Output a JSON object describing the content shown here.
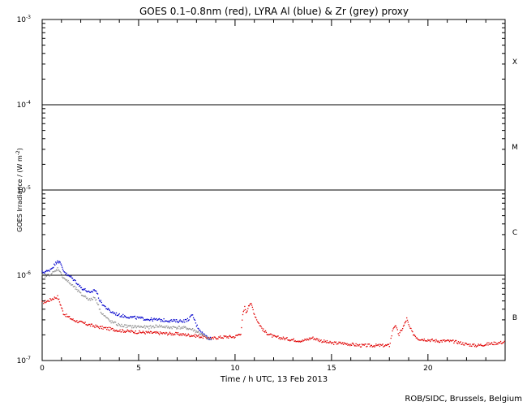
{
  "chart_data": {
    "type": "scatter",
    "title": "GOES 0.1–0.8nm (red), LYRA Al (blue) & Zr (grey) proxy",
    "xlabel": "Time / h UTC, 13 Feb 2013",
    "ylabel": "GOES Irradiance / (W m",
    "ylabel_sup": "-2",
    "ylabel_end": ")",
    "xlim": [
      0,
      24
    ],
    "ylim": [
      1e-07,
      0.001
    ],
    "yscale": "log",
    "x_ticks": [
      {
        "value": 0,
        "label": "0"
      },
      {
        "value": 5,
        "label": "5"
      },
      {
        "value": 10,
        "label": "10"
      },
      {
        "value": 15,
        "label": "15"
      },
      {
        "value": 20,
        "label": "20"
      }
    ],
    "y_ticks": [
      {
        "value": 1e-07,
        "base": "10",
        "exp": "-7"
      },
      {
        "value": 1e-06,
        "base": "10",
        "exp": "-6"
      },
      {
        "value": 1e-05,
        "base": "10",
        "exp": "-5"
      },
      {
        "value": 0.0001,
        "base": "10",
        "exp": "-4"
      },
      {
        "value": 0.001,
        "base": "10",
        "exp": "-3"
      }
    ],
    "class_thresholds": [
      1e-06,
      1e-05,
      0.0001
    ],
    "class_labels": [
      {
        "label": "B",
        "value": 3.2e-07
      },
      {
        "label": "C",
        "value": 3.2e-06
      },
      {
        "label": "M",
        "value": 3.2e-05
      },
      {
        "label": "X",
        "value": 0.00032
      }
    ],
    "series": [
      {
        "color": "#e00000",
        "x": [
          0,
          0.3,
          0.6,
          0.8,
          0.9,
          1.0,
          1.1,
          1.3,
          1.6,
          2.0,
          2.5,
          3.0,
          3.5,
          4.0,
          5.0,
          6.0,
          7.0,
          7.5,
          8.0,
          8.3,
          8.6,
          8.8,
          9.0,
          9.5,
          10.0,
          10.3,
          10.4,
          10.5,
          10.6,
          10.7,
          10.8,
          10.9,
          11.0,
          11.2,
          11.5,
          12.0,
          13.0,
          13.5,
          14.0,
          14.5,
          15.0,
          15.5,
          16.0,
          16.5,
          17.0,
          17.5,
          18.0,
          18.2,
          18.3,
          18.5,
          18.8,
          18.9,
          19.0,
          19.2,
          19.5,
          20.0,
          20.5,
          21.0,
          21.5,
          22.0,
          22.5,
          23.0,
          23.5,
          24.0
        ],
        "y": [
          4.8e-07,
          5e-07,
          5.4e-07,
          5.6e-07,
          4.9e-07,
          4.2e-07,
          3.6e-07,
          3.3e-07,
          3e-07,
          2.8e-07,
          2.6e-07,
          2.45e-07,
          2.35e-07,
          2.25e-07,
          2.15e-07,
          2.1e-07,
          2.05e-07,
          2e-07,
          1.95e-07,
          1.9e-07,
          1.85e-07,
          1.8e-07,
          1.85e-07,
          1.9e-07,
          1.9e-07,
          2.1e-07,
          3.4e-07,
          4.2e-07,
          3.6e-07,
          4.5e-07,
          4.7e-07,
          4.2e-07,
          3.5e-07,
          2.8e-07,
          2.2e-07,
          1.9e-07,
          1.75e-07,
          1.7e-07,
          1.85e-07,
          1.7e-07,
          1.6e-07,
          1.6e-07,
          1.55e-07,
          1.5e-07,
          1.5e-07,
          1.5e-07,
          1.5e-07,
          2.4e-07,
          2.6e-07,
          2e-07,
          2.7e-07,
          3.1e-07,
          2.6e-07,
          2.1e-07,
          1.8e-07,
          1.75e-07,
          1.7e-07,
          1.7e-07,
          1.65e-07,
          1.55e-07,
          1.5e-07,
          1.55e-07,
          1.6e-07,
          1.65e-07
        ]
      },
      {
        "color": "#0000cc",
        "x": [
          0,
          0.3,
          0.5,
          0.7,
          0.8,
          0.9,
          1.0,
          1.1,
          1.3,
          1.5,
          1.8,
          2.0,
          2.3,
          2.5,
          2.7,
          2.8,
          3.0,
          3.2,
          3.5,
          4.0,
          4.5,
          5.0,
          5.5,
          6.0,
          6.5,
          7.0,
          7.5,
          7.8,
          8.0,
          8.3,
          8.6,
          8.8
        ],
        "y": [
          1.08e-06,
          1.12e-06,
          1.22e-06,
          1.38e-06,
          1.5e-06,
          1.42e-06,
          1.3e-06,
          1.15e-06,
          1e-06,
          9.5e-07,
          8.2e-07,
          7.2e-07,
          6.6e-07,
          6.1e-07,
          6.8e-07,
          6.5e-07,
          5e-07,
          4.4e-07,
          3.8e-07,
          3.4e-07,
          3.25e-07,
          3.15e-07,
          3.05e-07,
          3e-07,
          2.95e-07,
          2.9e-07,
          2.95e-07,
          3.4e-07,
          2.6e-07,
          2.1e-07,
          1.85e-07,
          1.8e-07
        ]
      },
      {
        "color": "#909090",
        "x": [
          0,
          0.3,
          0.5,
          0.7,
          0.8,
          0.9,
          1.0,
          1.2,
          1.5,
          1.8,
          2.0,
          2.3,
          2.5,
          2.7,
          2.8,
          3.0,
          3.2,
          3.5,
          4.0,
          4.5,
          5.0,
          5.5,
          6.0,
          6.5,
          7.0,
          7.5,
          7.8,
          8.0,
          8.3,
          8.6,
          8.8
        ],
        "y": [
          9.8e-07,
          1e-06,
          1.05e-06,
          1.12e-06,
          1.2e-06,
          1.15e-06,
          1e-06,
          9e-07,
          7.8e-07,
          6.8e-07,
          6e-07,
          5.5e-07,
          5.1e-07,
          5.5e-07,
          5.2e-07,
          3.9e-07,
          3.4e-07,
          2.9e-07,
          2.6e-07,
          2.5e-07,
          2.5e-07,
          2.45e-07,
          2.55e-07,
          2.45e-07,
          2.45e-07,
          2.4e-07,
          2.3e-07,
          2.2e-07,
          2e-07,
          1.8e-07,
          1.75e-07
        ]
      }
    ]
  },
  "footer": {
    "credit": "ROB/SIDC, Brussels, Belgium"
  }
}
